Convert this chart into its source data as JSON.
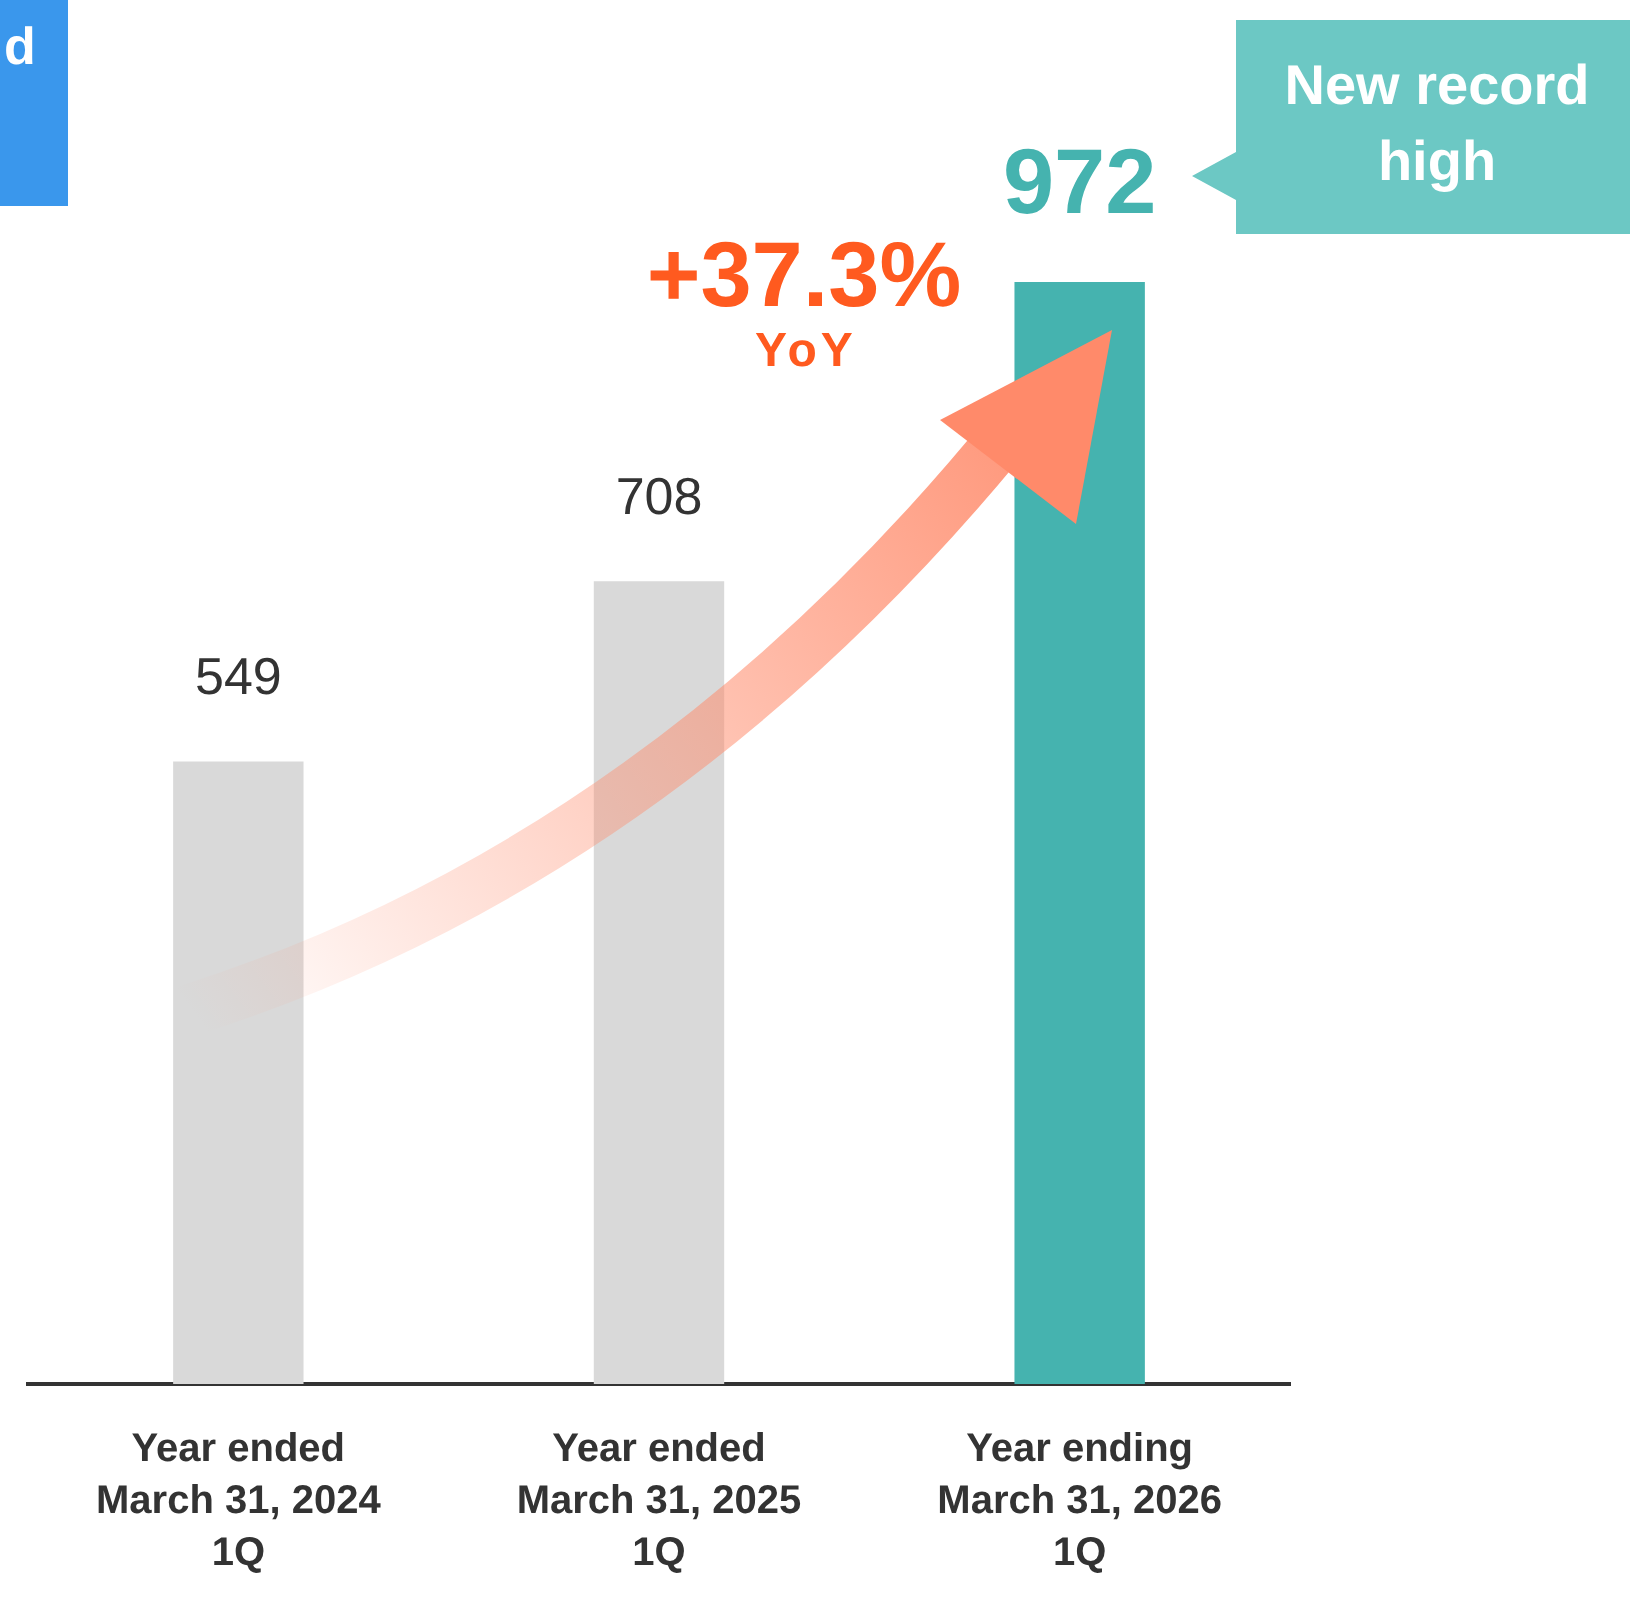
{
  "chart_data": {
    "type": "bar",
    "categories": [
      "Year ended\nMarch 31, 2024\n1Q",
      "Year ended\nMarch 31, 2025\n1Q",
      "Year ending\nMarch 31, 2026\n1Q"
    ],
    "values": [
      549,
      708,
      972
    ],
    "colors": [
      "#d9d9d9",
      "#d9d9d9",
      "#45b3af"
    ],
    "data_labels": true,
    "tick_labels": "x",
    "grid": false,
    "legend": false,
    "annotations": [
      "d",
      "+37.3%",
      "YoY",
      "New record\nhigh"
    ]
  }
}
